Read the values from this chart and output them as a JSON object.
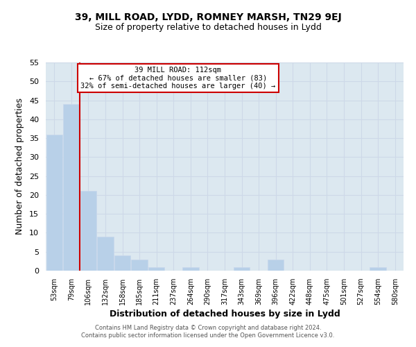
{
  "title1": "39, MILL ROAD, LYDD, ROMNEY MARSH, TN29 9EJ",
  "title2": "Size of property relative to detached houses in Lydd",
  "xlabel": "Distribution of detached houses by size in Lydd",
  "ylabel": "Number of detached properties",
  "bin_labels": [
    "53sqm",
    "79sqm",
    "106sqm",
    "132sqm",
    "158sqm",
    "185sqm",
    "211sqm",
    "237sqm",
    "264sqm",
    "290sqm",
    "317sqm",
    "343sqm",
    "369sqm",
    "396sqm",
    "422sqm",
    "448sqm",
    "475sqm",
    "501sqm",
    "527sqm",
    "554sqm",
    "580sqm"
  ],
  "bar_values": [
    36,
    44,
    21,
    9,
    4,
    3,
    1,
    0,
    1,
    0,
    0,
    1,
    0,
    3,
    0,
    0,
    0,
    0,
    0,
    1,
    0
  ],
  "bar_color": "#b8d0e8",
  "bar_edge_color": "#c8d8ec",
  "vline_color": "#cc0000",
  "ylim": [
    0,
    55
  ],
  "yticks": [
    0,
    5,
    10,
    15,
    20,
    25,
    30,
    35,
    40,
    45,
    50,
    55
  ],
  "annotation_title": "39 MILL ROAD: 112sqm",
  "annotation_line1": "← 67% of detached houses are smaller (83)",
  "annotation_line2": "32% of semi-detached houses are larger (40) →",
  "annotation_box_color": "#ffffff",
  "annotation_box_edge": "#cc0000",
  "grid_color": "#cdd8e8",
  "bg_color": "#dce8f0",
  "footer1": "Contains HM Land Registry data © Crown copyright and database right 2024.",
  "footer2": "Contains public sector information licensed under the Open Government Licence v3.0.",
  "title1_fontsize": 10,
  "title2_fontsize": 9
}
